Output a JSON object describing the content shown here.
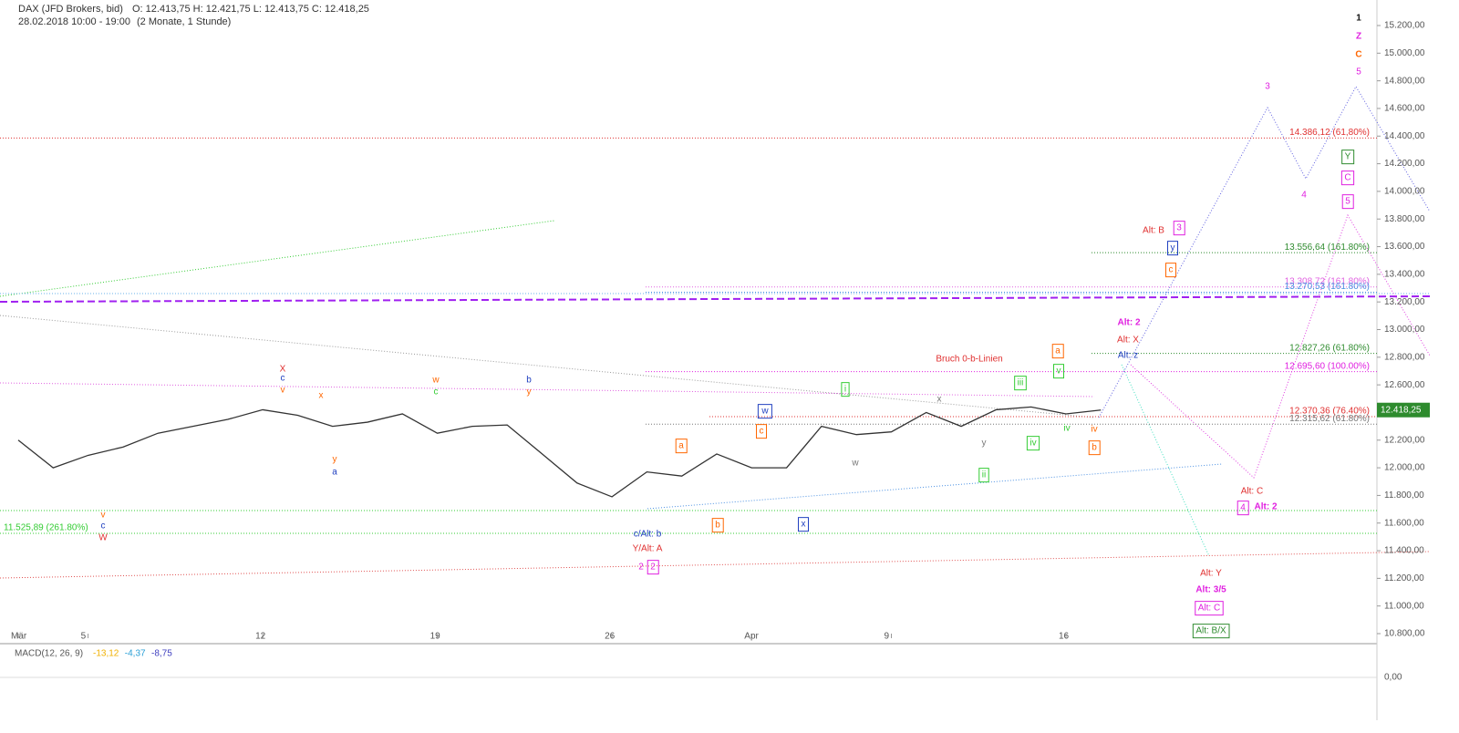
{
  "chart_data": {
    "type": "line",
    "title": "DAX (JFD Brokers, bid)",
    "ohlc_label": "O: 12.413,75  H: 12.421,75  L: 12.413,75  C: 12.418,25",
    "period": "28.02.2018 10:00 - 19:00",
    "range_note": "(2 Monate, 1 Stunde)",
    "last_price_label": "12.418,25",
    "categories": [
      "Mär",
      null,
      "5",
      null,
      null,
      null,
      null,
      "12",
      null,
      null,
      null,
      null,
      "19",
      null,
      null,
      null,
      null,
      "26",
      null,
      null,
      null,
      "Apr",
      null,
      null,
      null,
      "9",
      null,
      null,
      null,
      null,
      "16",
      null
    ],
    "series": [
      {
        "name": "DAX",
        "color": "#333333",
        "values": [
          12200,
          12000,
          12090,
          12150,
          12250,
          12300,
          12350,
          12420,
          12380,
          12300,
          12330,
          12390,
          12250,
          12300,
          12310,
          12100,
          11890,
          11790,
          11970,
          11940,
          12100,
          12000,
          12000,
          12300,
          12240,
          12260,
          12400,
          12300,
          12420,
          12440,
          12390,
          12418
        ]
      }
    ],
    "ylim": [
      10800,
      15200
    ],
    "yticks": [
      {
        "value": 10800,
        "label": "10.800,00"
      },
      {
        "value": 11000,
        "label": "11.000,00"
      },
      {
        "value": 11200,
        "label": "11.200,00"
      },
      {
        "value": 11400,
        "label": "11.400,00"
      },
      {
        "value": 11600,
        "label": "11.600,00"
      },
      {
        "value": 11800,
        "label": "11.800,00"
      },
      {
        "value": 12000,
        "label": "12.000,00"
      },
      {
        "value": 12200,
        "label": "12.200,00"
      },
      {
        "value": 12400,
        "label": "12.400,00"
      },
      {
        "value": 12600,
        "label": "12.600,00"
      },
      {
        "value": 12800,
        "label": "12.800,00"
      },
      {
        "value": 13000,
        "label": "13.000,00"
      },
      {
        "value": 13200,
        "label": "13.200,00"
      },
      {
        "value": 13400,
        "label": "13.400,00"
      },
      {
        "value": 13600,
        "label": "13.600,00"
      },
      {
        "value": 13800,
        "label": "13.800,00"
      },
      {
        "value": 14000,
        "label": "14.000,00"
      },
      {
        "value": 14200,
        "label": "14.200,00"
      },
      {
        "value": 14400,
        "label": "14.400,00"
      },
      {
        "value": 14600,
        "label": "14.600,00"
      },
      {
        "value": 14800,
        "label": "14.800,00"
      },
      {
        "value": 15000,
        "label": "15.000,00"
      },
      {
        "value": 15200,
        "label": "15.200,00"
      }
    ],
    "levels": [
      {
        "value": 14386.12,
        "label": "14.386,12 (61,80%)",
        "color": "#e03030"
      },
      {
        "value": 13556.64,
        "label": "13.556,64 (161.80%)",
        "color": "#2e8b2e"
      },
      {
        "value": 13308.72,
        "label": "13.308,72 (161.80%)",
        "color": "#e060e0"
      },
      {
        "value": 13270.53,
        "label": "13.270,53 (161.80%)",
        "color": "#4a90e2"
      },
      {
        "value": 12827.26,
        "label": "12.827,26 (61.80%)",
        "color": "#2e8b2e"
      },
      {
        "value": 12695.6,
        "label": "12.695,60 (100.00%)",
        "color": "#e020e0"
      },
      {
        "value": 12370.36,
        "label": "12.370,36 (76.40%)",
        "color": "#e03030"
      },
      {
        "value": 12315.62,
        "label": "12.315,62 (61.80%)",
        "color": "#777777"
      },
      {
        "value": 11525.89,
        "label": "11.525,89 (261.80%)",
        "color": "#33cc33"
      }
    ],
    "annotations": [
      {
        "text": "1",
        "color": "#111111"
      },
      {
        "text": "Z",
        "color": "#e020e0"
      },
      {
        "text": "C",
        "color": "#ff6600"
      },
      {
        "text": "5",
        "color": "#e020e0"
      },
      {
        "text": "3",
        "color": "#e020e0"
      },
      {
        "text": "4",
        "color": "#e020e0"
      },
      {
        "text": "5",
        "color": "#e020e0"
      },
      {
        "text": "Y",
        "color": "#2e8b2e"
      },
      {
        "text": "C",
        "color": "#e020e0"
      },
      {
        "text": "Alt: B",
        "color": "#e03030"
      },
      {
        "text": "3",
        "color": "#e020e0"
      },
      {
        "text": "y",
        "color": "#2040c0"
      },
      {
        "text": "c",
        "color": "#ff6600"
      },
      {
        "text": "Alt: 2",
        "color": "#e020e0"
      },
      {
        "text": "Alt: X",
        "color": "#e03030"
      },
      {
        "text": "Alt: z",
        "color": "#2040c0"
      },
      {
        "text": "Bruch 0-b-Linien",
        "color": "#e03030"
      },
      {
        "text": "Alt: C",
        "color": "#e03030"
      },
      {
        "text": "4",
        "color": "#e020e0"
      },
      {
        "text": "Alt: 2",
        "color": "#e020e0"
      },
      {
        "text": "Alt: Y",
        "color": "#e03030"
      },
      {
        "text": "Alt: 3/5",
        "color": "#e020e0"
      },
      {
        "text": "Alt: C",
        "color": "#e020e0"
      },
      {
        "text": "Alt: B/X",
        "color": "#2e8b2e"
      },
      {
        "text": "c/Alt: b",
        "color": "#2040c0"
      },
      {
        "text": "Y/Alt: A",
        "color": "#e03030"
      },
      {
        "text": "2",
        "color": "#e020e0"
      },
      {
        "text": "2",
        "color": "#e020e0"
      },
      {
        "text": "w",
        "color": "#2040c0"
      },
      {
        "text": "x",
        "color": "#2040c0"
      },
      {
        "text": "b",
        "color": "#ff6600"
      },
      {
        "text": "a",
        "color": "#ff6600"
      },
      {
        "text": "c",
        "color": "#ff6600"
      },
      {
        "text": "W",
        "color": "#e03030"
      },
      {
        "text": "c",
        "color": "#2040c0"
      },
      {
        "text": "v",
        "color": "#ff6600"
      },
      {
        "text": "X",
        "color": "#e03030"
      },
      {
        "text": "c",
        "color": "#2040c0"
      },
      {
        "text": "v",
        "color": "#ff6600"
      },
      {
        "text": "x",
        "color": "#ff6600"
      },
      {
        "text": "a",
        "color": "#2040c0"
      },
      {
        "text": "y",
        "color": "#ff6600"
      },
      {
        "text": "b",
        "color": "#2040c0"
      },
      {
        "text": "y",
        "color": "#ff6600"
      },
      {
        "text": "w",
        "color": "#ff6600"
      },
      {
        "text": "c",
        "color": "#33cc33"
      },
      {
        "text": "i",
        "color": "#33cc33"
      },
      {
        "text": "ii",
        "color": "#33cc33"
      },
      {
        "text": "iv",
        "color": "#33cc33"
      },
      {
        "text": "iii",
        "color": "#33cc33"
      },
      {
        "text": "v",
        "color": "#33cc33"
      },
      {
        "text": "a",
        "color": "#ff6600"
      },
      {
        "text": "b",
        "color": "#ff6600"
      },
      {
        "text": "iv",
        "color": "#ff6600"
      },
      {
        "text": "iv",
        "color": "#33cc33"
      },
      {
        "text": "x",
        "color": "#777777"
      },
      {
        "text": "w",
        "color": "#777777"
      },
      {
        "text": "y",
        "color": "#777777"
      }
    ],
    "macd": {
      "label": "MACD(12, 26, 9)",
      "values_labels": [
        "-13,12",
        "-4,37",
        "-8,75"
      ],
      "colors": [
        "#f0b000",
        "#2a9fd6",
        "#4040c0"
      ],
      "ylim": [
        -1,
        1
      ],
      "yticks": [
        {
          "value": 0,
          "label": "0,00"
        }
      ]
    }
  }
}
